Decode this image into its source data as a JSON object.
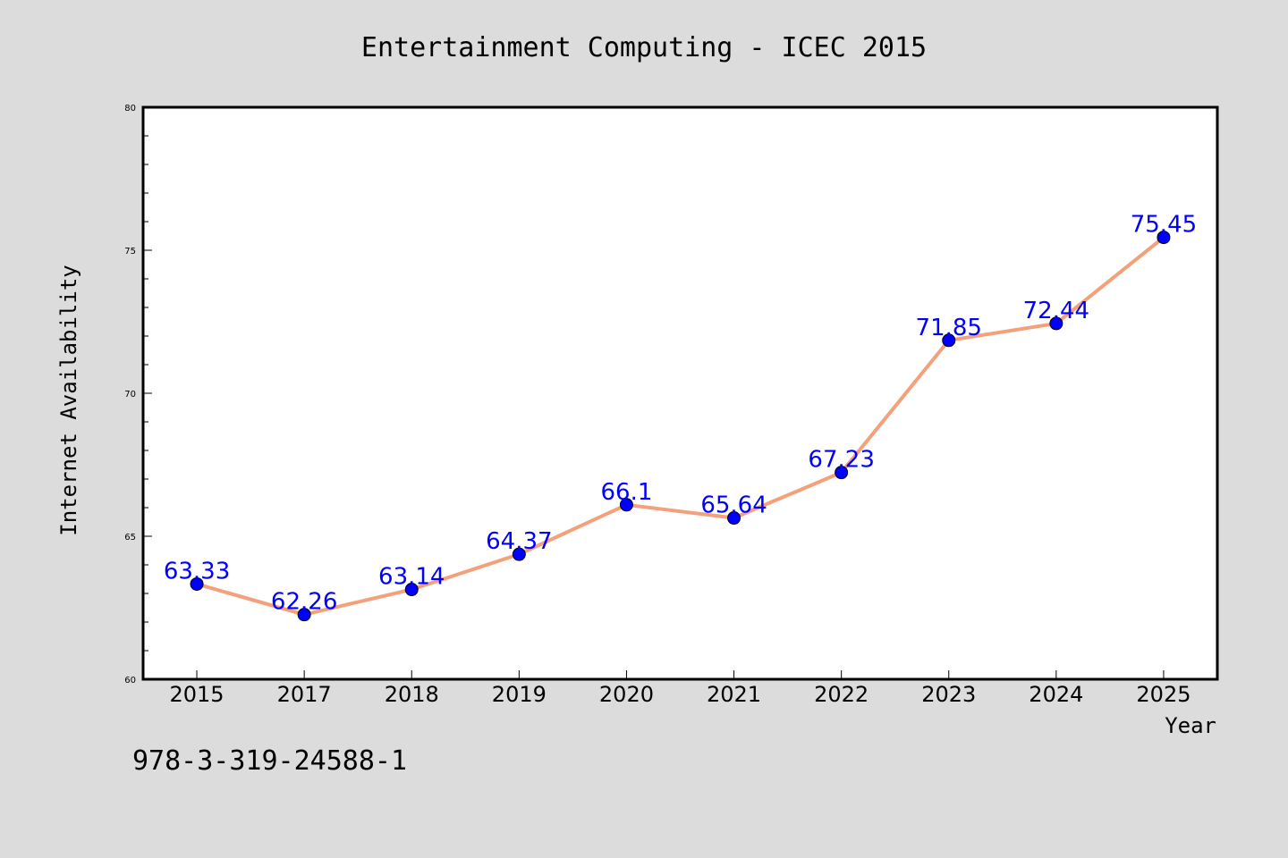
{
  "chart_data": {
    "type": "line",
    "title": "Entertainment Computing - ICEC 2015",
    "xlabel": "Year",
    "ylabel": "Internet Availability",
    "categories": [
      "2015",
      "2017",
      "2018",
      "2019",
      "2020",
      "2021",
      "2022",
      "2023",
      "2024",
      "2025"
    ],
    "series": [
      {
        "values": [
          63.33,
          62.26,
          63.14,
          64.37,
          66.1,
          65.64,
          67.23,
          71.85,
          72.44,
          75.45
        ],
        "labels": [
          "63.33",
          "62.26",
          "63.14",
          "64.37",
          "66.1",
          "65.64",
          "67.23",
          "71.85",
          "72.44",
          "75.45"
        ]
      }
    ],
    "ylim": [
      60,
      80
    ],
    "yticks": [
      "60",
      "65",
      "70",
      "75",
      "80"
    ],
    "grid": false,
    "legend": "none",
    "colors": {
      "line": "#f4a07a",
      "marker": "#0000ff",
      "label": "#0000ff",
      "background": "#dcdcdc",
      "plot_bg": "#ffffff"
    }
  },
  "note": "978-3-319-24588-1"
}
